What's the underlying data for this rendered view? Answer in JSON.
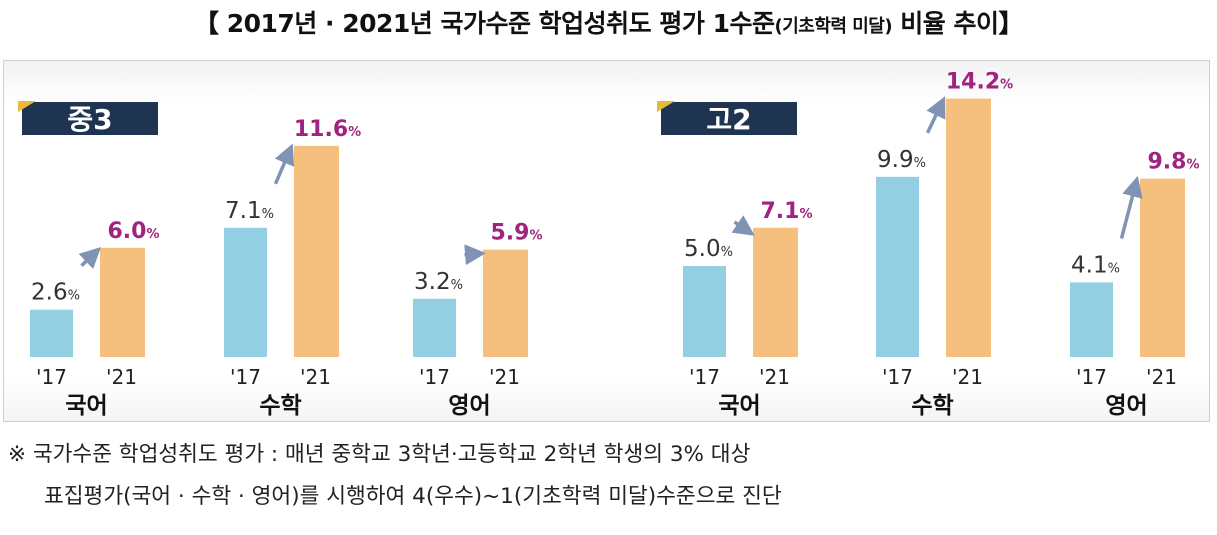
{
  "title": {
    "main_before": "【 2017년 · 2021년 국가수준 학업성취도 평가 1수준",
    "small": "(기초학력 미달)",
    "main_after": " 비율 추이】"
  },
  "chart_data": [
    {
      "type": "bar",
      "panel_label": "중3",
      "categories": [
        "국어",
        "수학",
        "영어"
      ],
      "series": [
        {
          "name": "'17",
          "values": [
            2.6,
            7.1,
            3.2
          ]
        },
        {
          "name": "'21",
          "values": [
            6.0,
            11.6,
            5.9
          ]
        }
      ],
      "unit": "%",
      "ylim": [
        0,
        15
      ]
    },
    {
      "type": "bar",
      "panel_label": "고2",
      "categories": [
        "국어",
        "수학",
        "영어"
      ],
      "series": [
        {
          "name": "'17",
          "values": [
            5.0,
            9.9,
            4.1
          ]
        },
        {
          "name": "'21",
          "values": [
            7.1,
            14.2,
            9.8
          ]
        }
      ],
      "unit": "%",
      "ylim": [
        0,
        15
      ]
    }
  ],
  "colors": {
    "bar_2017": "#93cee2",
    "bar_2021": "#f5c07d",
    "label_2021": "#a0247f",
    "label_2017": "#333333",
    "badge_bg": "#1f3450",
    "badge_accent": "#e8b93a",
    "arrow": "#7f94b4"
  },
  "note": {
    "line1": "※ 국가수준 학업성취도 평가 : 매년 중학교 3학년·고등학교 2학년 학생의 3% 대상",
    "line2": "표집평가(국어 · 수학 · 영어)를 시행하여 4(우수)~1(기초학력 미달)수준으로 진단"
  }
}
